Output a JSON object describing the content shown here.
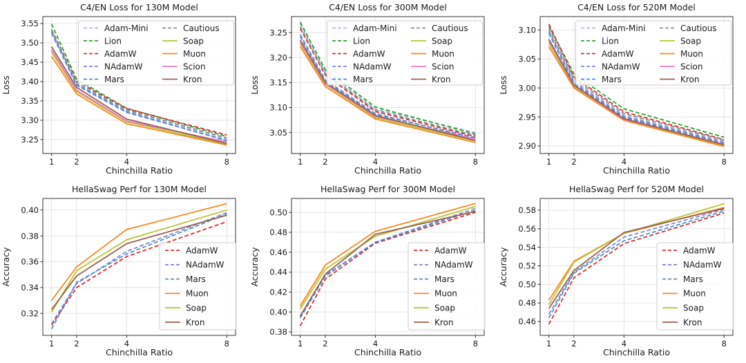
{
  "styles": {
    "background": "#ffffff",
    "text_color": "#1a1a1a",
    "grid_color": "#e2e2e2",
    "spine_color": "#333333",
    "tick_color": "#262626",
    "legend_border": "#cccccc",
    "legend_fill": "rgba(255,255,255,0.85)"
  },
  "optimizer_styles": {
    "Adam-Mini": {
      "color": "#b0b5e6",
      "dashed": true
    },
    "Lion": {
      "color": "#2ea12e",
      "dashed": true
    },
    "AdamW": {
      "color": "#d62f2f",
      "dashed": true
    },
    "NAdamW": {
      "color": "#8184d0",
      "dashed": true
    },
    "Mars": {
      "color": "#4a90c9",
      "dashed": true
    },
    "Cautious": {
      "color": "#8c8c8c",
      "dashed": true
    },
    "Soap": {
      "color": "#b9c433",
      "dashed": false
    },
    "Muon": {
      "color": "#f9871e",
      "dashed": false
    },
    "Scion": {
      "color": "#e878c5",
      "dashed": false
    },
    "Kron": {
      "color": "#96604f",
      "dashed": false
    }
  },
  "chart_data": [
    {
      "id": "c4-loss-130m",
      "type": "line",
      "title": "C4/EN Loss for 130M Model",
      "xlabel": "Chinchilla Ratio",
      "ylabel": "Loss",
      "x": [
        1,
        2,
        4,
        8
      ],
      "x_ticks": [
        "1",
        "2",
        "4",
        "8"
      ],
      "xlim": [
        0.65,
        8.35
      ],
      "ylim": [
        3.214,
        3.568
      ],
      "y_ticks": [
        3.25,
        3.3,
        3.35,
        3.4,
        3.45,
        3.5,
        3.55
      ],
      "grid": true,
      "legend": {
        "position": "upper-right",
        "columns": 2,
        "col1": [
          "Adam-Mini",
          "Lion",
          "AdamW",
          "NAdamW",
          "Mars"
        ],
        "col2": [
          "Cautious",
          "Soap",
          "Muon",
          "Scion",
          "Kron"
        ]
      },
      "series": [
        {
          "name": "Adam-Mini",
          "values": [
            3.532,
            3.396,
            3.325,
            3.252
          ]
        },
        {
          "name": "Lion",
          "values": [
            3.549,
            3.406,
            3.331,
            3.258
          ]
        },
        {
          "name": "AdamW",
          "values": [
            3.535,
            3.401,
            3.33,
            3.262
          ]
        },
        {
          "name": "NAdamW",
          "values": [
            3.525,
            3.39,
            3.32,
            3.248
          ]
        },
        {
          "name": "Mars",
          "values": [
            3.529,
            3.393,
            3.322,
            3.247
          ]
        },
        {
          "name": "Cautious",
          "values": [
            3.534,
            3.399,
            3.327,
            3.254
          ]
        },
        {
          "name": "Soap",
          "values": [
            3.476,
            3.374,
            3.296,
            3.238
          ]
        },
        {
          "name": "Muon",
          "values": [
            3.465,
            3.368,
            3.291,
            3.236
          ]
        },
        {
          "name": "Scion",
          "values": [
            3.482,
            3.378,
            3.298,
            3.244
          ]
        },
        {
          "name": "Kron",
          "values": [
            3.49,
            3.385,
            3.303,
            3.24
          ]
        }
      ]
    },
    {
      "id": "c4-loss-300m",
      "type": "line",
      "title": "C4/EN Loss for 300M Model",
      "xlabel": "Chinchilla Ratio",
      "ylabel": "Loss",
      "x": [
        1,
        2,
        4,
        8
      ],
      "x_ticks": [
        "1",
        "2",
        "4",
        "8"
      ],
      "xlim": [
        0.65,
        8.35
      ],
      "ylim": [
        3.008,
        3.282
      ],
      "y_ticks": [
        3.05,
        3.1,
        3.15,
        3.2,
        3.25
      ],
      "grid": true,
      "legend": {
        "position": "upper-right",
        "columns": 2,
        "col1": [
          "Adam-Mini",
          "Lion",
          "AdamW",
          "NAdamW",
          "Mars"
        ],
        "col2": [
          "Cautious",
          "Soap",
          "Muon",
          "Scion",
          "Kron"
        ]
      },
      "series": [
        {
          "name": "Adam-Mini",
          "values": [
            3.268,
            3.172,
            3.097,
            3.05
          ]
        },
        {
          "name": "Lion",
          "values": [
            3.271,
            3.176,
            3.101,
            3.047
          ]
        },
        {
          "name": "AdamW",
          "values": [
            3.258,
            3.165,
            3.092,
            3.042
          ]
        },
        {
          "name": "NAdamW",
          "values": [
            3.242,
            3.152,
            3.086,
            3.04
          ]
        },
        {
          "name": "Mars",
          "values": [
            3.246,
            3.155,
            3.088,
            3.038
          ]
        },
        {
          "name": "Cautious",
          "values": [
            3.262,
            3.168,
            3.095,
            3.044
          ]
        },
        {
          "name": "Soap",
          "values": [
            3.228,
            3.146,
            3.08,
            3.033
          ]
        },
        {
          "name": "Muon",
          "values": [
            3.222,
            3.142,
            3.077,
            3.03
          ]
        },
        {
          "name": "Scion",
          "values": [
            3.231,
            3.148,
            3.082,
            3.037
          ]
        },
        {
          "name": "Kron",
          "values": [
            3.235,
            3.15,
            3.084,
            3.034
          ]
        }
      ]
    },
    {
      "id": "c4-loss-520m",
      "type": "line",
      "title": "C4/EN Loss for 520M Model",
      "xlabel": "Chinchilla Ratio",
      "ylabel": "Loss",
      "x": [
        1,
        2,
        4,
        8
      ],
      "x_ticks": [
        "1",
        "2",
        "4",
        "8"
      ],
      "xlim": [
        0.65,
        8.35
      ],
      "ylim": [
        2.887,
        3.123
      ],
      "y_ticks": [
        2.9,
        2.95,
        3.0,
        3.05,
        3.1
      ],
      "grid": true,
      "legend": {
        "position": "upper-right",
        "columns": 2,
        "col1": [
          "Adam-Mini",
          "Lion",
          "AdamW",
          "NAdamW",
          "Mars"
        ],
        "col2": [
          "Cautious",
          "Soap",
          "Muon",
          "Scion",
          "Kron"
        ]
      },
      "series": [
        {
          "name": "Adam-Mini",
          "values": [
            3.1,
            3.013,
            2.953,
            2.908
          ]
        },
        {
          "name": "Lion",
          "values": [
            3.107,
            3.024,
            2.964,
            2.915
          ]
        },
        {
          "name": "AdamW",
          "values": [
            3.11,
            3.019,
            2.959,
            2.911
          ]
        },
        {
          "name": "NAdamW",
          "values": [
            3.097,
            3.01,
            2.951,
            2.906
          ]
        },
        {
          "name": "Mars",
          "values": [
            3.094,
            3.007,
            2.949,
            2.904
          ]
        },
        {
          "name": "Cautious",
          "values": [
            3.103,
            3.016,
            2.956,
            2.91
          ]
        },
        {
          "name": "Soap",
          "values": [
            3.077,
            3.002,
            2.945,
            2.9
          ]
        },
        {
          "name": "Muon",
          "values": [
            3.071,
            3.0,
            2.944,
            2.899
          ]
        },
        {
          "name": "Scion",
          "values": [
            3.081,
            3.004,
            2.946,
            2.903
          ]
        },
        {
          "name": "Kron",
          "values": [
            3.084,
            3.005,
            2.947,
            2.902
          ]
        }
      ]
    },
    {
      "id": "hellaswag-130m",
      "type": "line",
      "title": "HellaSwag Perf for 130M Model",
      "xlabel": "Chinchilla Ratio",
      "ylabel": "Accuracy",
      "x": [
        1,
        2,
        4,
        8
      ],
      "x_ticks": [
        "1",
        "2",
        "4",
        "8"
      ],
      "xlim": [
        0.65,
        8.35
      ],
      "ylim": [
        0.303,
        0.409
      ],
      "y_ticks": [
        0.32,
        0.34,
        0.36,
        0.38,
        0.4
      ],
      "grid": false,
      "legend": {
        "position": "center-right",
        "columns": 1,
        "col1": [
          "AdamW",
          "NAdamW",
          "Mars",
          "Muon",
          "Soap",
          "Kron"
        ],
        "col2": []
      },
      "series": [
        {
          "name": "AdamW",
          "values": [
            0.311,
            0.34,
            0.364,
            0.391
          ]
        },
        {
          "name": "NAdamW",
          "values": [
            0.312,
            0.343,
            0.368,
            0.398
          ]
        },
        {
          "name": "Mars",
          "values": [
            0.308,
            0.344,
            0.366,
            0.397
          ]
        },
        {
          "name": "Muon",
          "values": [
            0.33,
            0.356,
            0.385,
            0.405
          ]
        },
        {
          "name": "Soap",
          "values": [
            0.321,
            0.353,
            0.377,
            0.4
          ]
        },
        {
          "name": "Kron",
          "values": [
            0.323,
            0.349,
            0.374,
            0.396
          ]
        }
      ]
    },
    {
      "id": "hellaswag-300m",
      "type": "line",
      "title": "HellaSwag Perf for 300M Model",
      "xlabel": "Chinchilla Ratio",
      "ylabel": "Accuracy",
      "x": [
        1,
        2,
        4,
        8
      ],
      "x_ticks": [
        "1",
        "2",
        "4",
        "8"
      ],
      "xlim": [
        0.65,
        8.35
      ],
      "ylim": [
        0.3765,
        0.514
      ],
      "y_ticks": [
        0.38,
        0.4,
        0.42,
        0.44,
        0.46,
        0.48,
        0.5
      ],
      "grid": false,
      "legend": {
        "position": "center-right",
        "columns": 1,
        "col1": [
          "AdamW",
          "NAdamW",
          "Mars",
          "Muon",
          "Soap",
          "Kron"
        ],
        "col2": []
      },
      "series": [
        {
          "name": "AdamW",
          "values": [
            0.386,
            0.433,
            0.469,
            0.5
          ]
        },
        {
          "name": "NAdamW",
          "values": [
            0.395,
            0.437,
            0.47,
            0.504
          ]
        },
        {
          "name": "Mars",
          "values": [
            0.394,
            0.436,
            0.47,
            0.502
          ]
        },
        {
          "name": "Muon",
          "values": [
            0.406,
            0.447,
            0.481,
            0.509
          ]
        },
        {
          "name": "Soap",
          "values": [
            0.403,
            0.443,
            0.476,
            0.506
          ]
        },
        {
          "name": "Kron",
          "values": [
            0.396,
            0.438,
            0.478,
            0.501
          ]
        }
      ]
    },
    {
      "id": "hellaswag-520m",
      "type": "line",
      "title": "HellaSwag Perf for 520M Model",
      "xlabel": "Chinchilla Ratio",
      "ylabel": "Accuracy",
      "x": [
        1,
        2,
        4,
        8
      ],
      "x_ticks": [
        "1",
        "2",
        "4",
        "8"
      ],
      "xlim": [
        0.65,
        8.35
      ],
      "ylim": [
        0.445,
        0.5927
      ],
      "y_ticks": [
        0.46,
        0.48,
        0.5,
        0.52,
        0.54,
        0.56,
        0.58
      ],
      "grid": false,
      "legend": {
        "position": "center-right",
        "columns": 1,
        "col1": [
          "AdamW",
          "NAdamW",
          "Mars",
          "Muon",
          "Soap",
          "Kron"
        ],
        "col2": []
      },
      "series": [
        {
          "name": "AdamW",
          "values": [
            0.457,
            0.507,
            0.544,
            0.577
          ]
        },
        {
          "name": "NAdamW",
          "values": [
            0.468,
            0.513,
            0.551,
            0.581
          ]
        },
        {
          "name": "Mars",
          "values": [
            0.464,
            0.512,
            0.547,
            0.579
          ]
        },
        {
          "name": "Muon",
          "values": [
            0.483,
            0.525,
            0.555,
            0.583
          ]
        },
        {
          "name": "Soap",
          "values": [
            0.478,
            0.524,
            0.555,
            0.587
          ]
        },
        {
          "name": "Kron",
          "values": [
            0.474,
            0.515,
            0.556,
            0.582
          ]
        }
      ]
    }
  ]
}
